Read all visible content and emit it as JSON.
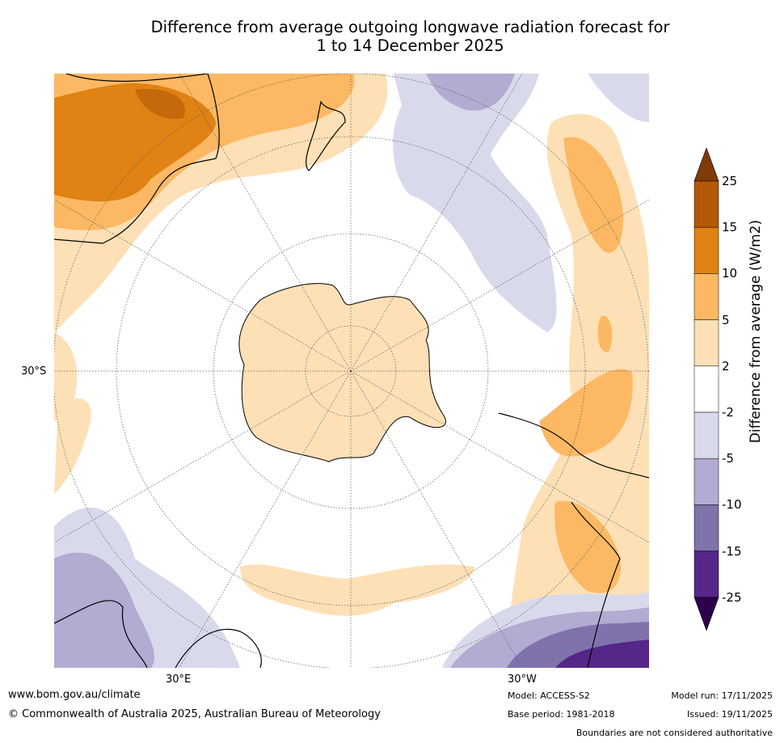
{
  "title_line1": "Difference from average outgoing longwave radiation forecast for",
  "title_line2": "1 to 14 December 2025",
  "map": {
    "lat_label": "30°S",
    "lon_labels": [
      "30°E",
      "30°W"
    ]
  },
  "colorbar": {
    "label": "Difference from average (W/m2)",
    "ticks": [
      "25",
      "15",
      "10",
      "5",
      "2",
      "-2",
      "-5",
      "-10",
      "-15",
      "-25"
    ],
    "colors": [
      "#7f3b08",
      "#b35806",
      "#e08214",
      "#fdb863",
      "#fee0b6",
      "#ffffff",
      "#d8daeb",
      "#b2abd2",
      "#8073ac",
      "#542788",
      "#2d004b"
    ]
  },
  "footer": {
    "website": "www.bom.gov.au/climate",
    "copyright": "© Commonwealth of Australia 2025, Australian Bureau of Meteorology",
    "model": "Model: ACCESS-S2",
    "base_period": "Base period: 1981-2018",
    "model_run": "Model run: 17/11/2025",
    "issued": "Issued: 19/11/2025",
    "disclaimer": "Boundaries are not considered authoritative"
  }
}
